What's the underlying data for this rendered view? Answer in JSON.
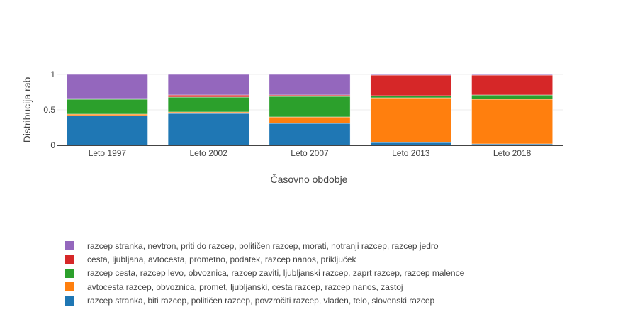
{
  "chart_data": {
    "type": "bar",
    "stacked": true,
    "categories": [
      "Leto 1997",
      "Leto 2002",
      "Leto 2007",
      "Leto 2013",
      "Leto 2018"
    ],
    "xlabel": "Časovno obdobje",
    "ylabel": "Distribucija rab",
    "ylim": [
      0,
      1
    ],
    "yticks": [
      "0",
      "0.5",
      "1"
    ],
    "grid": true,
    "legend_position": "bottom",
    "series": [
      {
        "name": "razcep stranka, biti razcep, političen razcep, povzročiti razcep, vladen, telo, slovenski razcep",
        "color": "#1f77b4",
        "values": [
          0.42,
          0.45,
          0.31,
          0.04,
          0.02
        ]
      },
      {
        "name": "avtocesta razcep, obvoznica, promet, ljubljanski, cesta razcep, razcep nanos, zastoj",
        "color": "#ff7f0e",
        "values": [
          0.02,
          0.02,
          0.09,
          0.63,
          0.63
        ]
      },
      {
        "name": "razcep cesta, razcep levo, obvoznica, razcep zaviti, ljubljanski razcep, zaprt razcep, razcep malence",
        "color": "#2ca02c",
        "values": [
          0.21,
          0.21,
          0.29,
          0.03,
          0.06
        ]
      },
      {
        "name": "cesta, ljubljana, avtocesta, prometno, podatek, razcep nanos, priključek",
        "color": "#d62728",
        "values": [
          0.01,
          0.03,
          0.02,
          0.29,
          0.28
        ]
      },
      {
        "name": "razcep stranka, nevtron, priti do razcep, političen razcep, morati, notranji razcep, razcep jedro",
        "color": "#9467bd",
        "values": [
          0.34,
          0.29,
          0.29,
          0.01,
          0.01
        ]
      }
    ]
  }
}
